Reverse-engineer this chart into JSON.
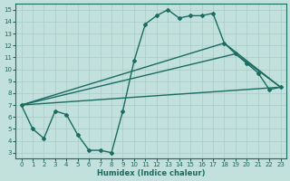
{
  "xlabel": "Humidex (Indice chaleur)",
  "xlim": [
    -0.5,
    23.5
  ],
  "ylim": [
    2.5,
    15.5
  ],
  "xticks": [
    0,
    1,
    2,
    3,
    4,
    5,
    6,
    7,
    8,
    9,
    10,
    11,
    12,
    13,
    14,
    15,
    16,
    17,
    18,
    19,
    20,
    21,
    22,
    23
  ],
  "yticks": [
    3,
    4,
    5,
    6,
    7,
    8,
    9,
    10,
    11,
    12,
    13,
    14,
    15
  ],
  "bg_color": "#c2e0dc",
  "grid_color": "#a8ccc8",
  "line_color": "#1a6b60",
  "main_line": {
    "x": [
      0,
      1,
      2,
      3,
      4,
      5,
      6,
      7,
      8,
      9,
      10,
      11,
      12,
      13,
      14,
      15,
      16,
      17,
      18,
      19,
      20,
      21,
      22,
      23
    ],
    "y": [
      7.0,
      5.0,
      4.2,
      6.5,
      6.2,
      4.5,
      3.2,
      3.2,
      3.0,
      6.5,
      10.7,
      13.8,
      14.5,
      15.0,
      14.3,
      14.5,
      14.5,
      14.7,
      12.2,
      11.3,
      10.5,
      9.7,
      8.3,
      8.5
    ]
  },
  "straight_lines": [
    {
      "x": [
        0,
        23
      ],
      "y": [
        7.0,
        8.5
      ]
    },
    {
      "x": [
        0,
        19,
        23
      ],
      "y": [
        7.0,
        11.3,
        8.5
      ]
    },
    {
      "x": [
        0,
        18,
        23
      ],
      "y": [
        7.0,
        12.2,
        8.5
      ]
    }
  ],
  "marker": "D",
  "markersize": 2.0,
  "linewidth": 1.0
}
